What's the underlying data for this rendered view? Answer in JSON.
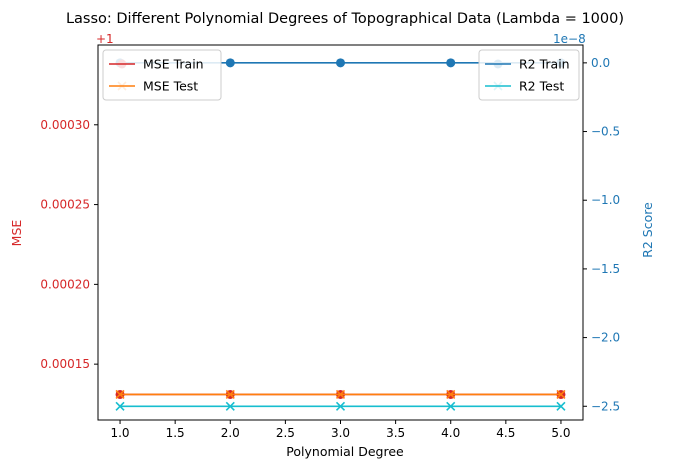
{
  "chart_data": {
    "type": "line",
    "title": "Lasso: Different Polynomial Degrees of Topographical Data (Lambda = 1000)",
    "xlabel": "Polynomial Degree",
    "ylabel_left": "MSE",
    "ylabel_right": "R2 Score",
    "left_offset_label": "+1",
    "right_offset_label": "1e−8",
    "x": [
      1.0,
      2.0,
      3.0,
      4.0,
      5.0
    ],
    "xlim": [
      0.8,
      5.2
    ],
    "xticks": [
      "1.0",
      "1.5",
      "2.0",
      "2.5",
      "3.0",
      "3.5",
      "4.0",
      "4.5",
      "5.0"
    ],
    "left_ylim": [
      0.000115,
      0.00035
    ],
    "left_yticks": [
      "0.00015",
      "0.00020",
      "0.00025",
      "0.00030"
    ],
    "right_ylim": [
      -2.6,
      0.13
    ],
    "right_yticks": [
      "0.0",
      "−0.5",
      "−1.0",
      "−1.5",
      "−2.0",
      "−2.5"
    ],
    "grid": false,
    "legend_left_position": "upper-left",
    "legend_right_position": "upper-right",
    "series": [
      {
        "name": "MSE Train",
        "axis": "left",
        "marker": "circle",
        "color": "#d62728",
        "values": [
          0.000131,
          0.000131,
          0.000131,
          0.000131,
          0.000131
        ]
      },
      {
        "name": "MSE Test",
        "axis": "left",
        "marker": "x",
        "color": "#ff7f0e",
        "values": [
          0.000131,
          0.000131,
          0.000131,
          0.000131,
          0.000131
        ]
      },
      {
        "name": "R2 Train",
        "axis": "right",
        "marker": "circle",
        "color": "#1f77b4",
        "values": [
          0.0,
          0.0,
          0.0,
          0.0,
          0.0
        ]
      },
      {
        "name": "R2 Test",
        "axis": "right",
        "marker": "x",
        "color": "#17becf",
        "values": [
          -2.5,
          -2.5,
          -2.5,
          -2.5,
          -2.5
        ]
      }
    ],
    "colors": {
      "left_axis": "#d62728",
      "right_axis": "#1f77b4",
      "frame": "#000000"
    }
  }
}
